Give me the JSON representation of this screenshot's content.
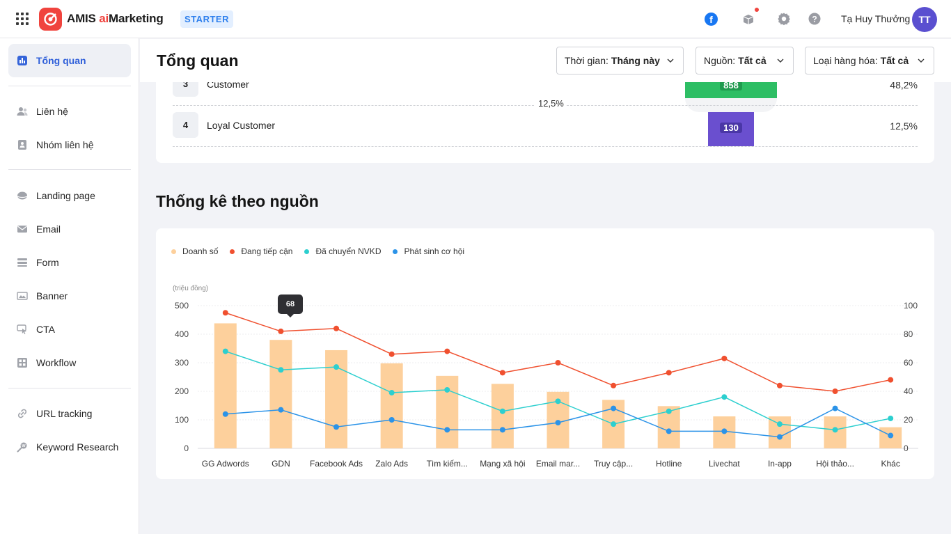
{
  "header": {
    "logo_text": "AMIS ",
    "logo_ai": "ai",
    "logo_suffix": "Marketing",
    "plan": "STARTER",
    "user_name": "Tạ Huy Thưởng",
    "avatar_initials": "TT",
    "icons": [
      "apps-grid-icon",
      "facebook-icon",
      "gift-icon",
      "settings-icon",
      "help-icon"
    ]
  },
  "sidebar": {
    "items": [
      {
        "label": "Tổng quan",
        "icon": "dashboard-icon"
      },
      {
        "label": "Liên hệ",
        "icon": "contacts-icon"
      },
      {
        "label": "Nhóm liên hệ",
        "icon": "contact-group-icon"
      },
      {
        "label": "Landing page",
        "icon": "landing-page-icon"
      },
      {
        "label": "Email",
        "icon": "email-icon"
      },
      {
        "label": "Form",
        "icon": "form-icon"
      },
      {
        "label": "Banner",
        "icon": "banner-icon"
      },
      {
        "label": "CTA",
        "icon": "cta-icon"
      },
      {
        "label": "Workflow",
        "icon": "workflow-icon"
      },
      {
        "label": "URL tracking",
        "icon": "link-icon"
      },
      {
        "label": "Keyword Research",
        "icon": "keyword-icon"
      }
    ]
  },
  "main": {
    "title": "Tổng quan",
    "filters": [
      {
        "label": "Thời gian:",
        "value": "Tháng này"
      },
      {
        "label": "Nguồn:",
        "value": "Tất cả"
      },
      {
        "label": "Loại hàng hóa:",
        "value": "Tất cả"
      }
    ]
  },
  "funnel": {
    "rows": [
      {
        "index": "3",
        "name": "Customer",
        "value": "858",
        "percent": "48,2%",
        "color": "#2dbe64"
      },
      {
        "index": "4",
        "name": "Loyal Customer",
        "value": "130",
        "percent": "12,5%",
        "color": "#6a4fcf"
      }
    ],
    "conversion": "12,5%"
  },
  "source_section": {
    "title": "Thống kê theo nguồn"
  },
  "chart_data": {
    "type": "bar",
    "categories": [
      "GG Adwords",
      "GDN",
      "Facebook Ads",
      "Zalo Ads",
      "Tìm kiếm...",
      "Mạng xã hội",
      "Email mar...",
      "Truy cập...",
      "Hotline",
      "Livechat",
      "In-app",
      "Hội thảo...",
      "Khác"
    ],
    "y_unit": "(triệu đồng)",
    "ylim": [
      0,
      500
    ],
    "y2lim": [
      0,
      100
    ],
    "y_ticks": [
      0,
      100,
      200,
      300,
      400,
      500
    ],
    "y2_ticks": [
      0,
      20,
      40,
      60,
      80,
      100
    ],
    "series": [
      {
        "name": "Doanh số",
        "type": "bar",
        "axis": "left",
        "color": "#fdd09c",
        "values": [
          438,
          380,
          344,
          298,
          254,
          226,
          198,
          170,
          148,
          112,
          112,
          112,
          74
        ]
      },
      {
        "name": "Đang tiếp cận",
        "type": "line",
        "axis": "right",
        "color": "#f0502f",
        "values": [
          95,
          82,
          84,
          66,
          68,
          53,
          60,
          44,
          53,
          63,
          44,
          40,
          48
        ]
      },
      {
        "name": "Đã chuyển NVKD",
        "type": "line",
        "axis": "right",
        "color": "#2ccfcf",
        "values": [
          68,
          55,
          57,
          39,
          41,
          26,
          33,
          17,
          26,
          36,
          17,
          13,
          21
        ]
      },
      {
        "name": "Phát sinh cơ hội",
        "type": "line",
        "axis": "right",
        "color": "#2b93e8",
        "values": [
          24,
          27,
          15,
          20,
          13,
          13,
          18,
          28,
          12,
          12,
          8,
          28,
          9
        ]
      }
    ],
    "tooltip": "68",
    "legend_position": "top-left",
    "grid": true
  }
}
